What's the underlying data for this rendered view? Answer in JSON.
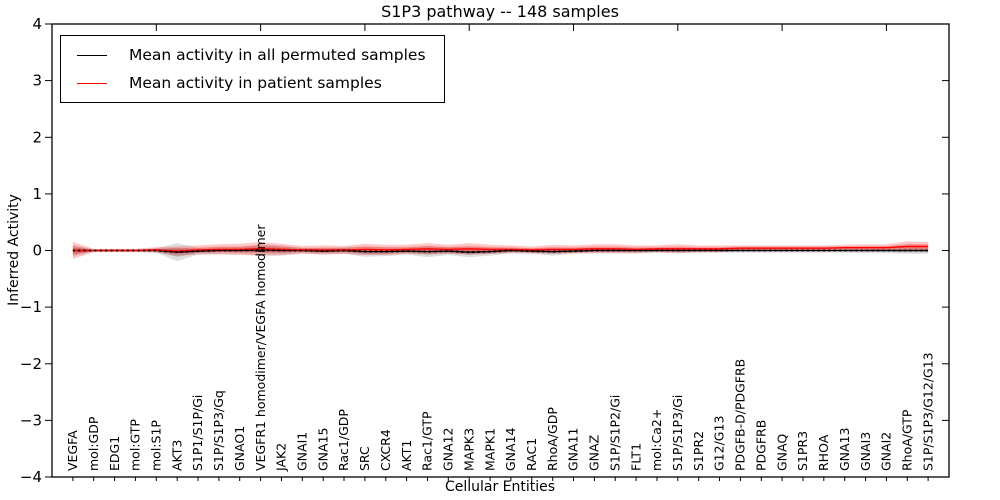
{
  "title": "S1P3 pathway -- 148 samples",
  "legend": {
    "items": [
      {
        "key": "permuted",
        "label": "Mean activity in all permuted samples",
        "color": "#000000"
      },
      {
        "key": "patient",
        "label": "Mean activity in patient samples",
        "color": "#ff0000"
      }
    ]
  },
  "axes": {
    "ylabel": "Inferred Activity",
    "xlabel": "Cellular Entities",
    "y_ticks": [
      "4",
      "3",
      "2",
      "1",
      "0",
      "−1",
      "−2",
      "−3",
      "−4"
    ],
    "ylim": [
      -4,
      4
    ],
    "x_major_tick_every": 5,
    "grid": false
  },
  "chart_data": {
    "type": "line",
    "title": "S1P3 pathway -- 148 samples",
    "xlabel": "Cellular Entities",
    "ylabel": "Inferred Activity",
    "ylim": [
      -4,
      4
    ],
    "legend_position": "upper left",
    "categories": [
      "VEGFA",
      "mol:GDP",
      "EDG1",
      "mol:GTP",
      "mol:S1P",
      "AKT3",
      "S1P1/S1P/Gi",
      "S1P/S1P3/Gq",
      "GNAO1",
      "VEGFR1 homodimer/VEGFA homodimer",
      "JAK2",
      "GNAI1",
      "GNA15",
      "Rac1/GDP",
      "SRC",
      "CXCR4",
      "AKT1",
      "Rac1/GTP",
      "GNA12",
      "MAPK3",
      "MAPK1",
      "GNA14",
      "RAC1",
      "RhoA/GDP",
      "GNA11",
      "GNAZ",
      "S1P/S1P2/Gi",
      "FLT1",
      "mol:Ca2+",
      "S1P/S1P3/Gi",
      "S1PR2",
      "G12/G13",
      "PDGFB-D/PDGFRB",
      "PDGFRB",
      "GNAQ",
      "S1PR3",
      "RHOA",
      "GNA13",
      "GNAI3",
      "GNAI2",
      "RhoA/GTP",
      "S1P/S1P3/G12/G13"
    ],
    "series": [
      {
        "key": "permuted",
        "name": "Mean activity in all permuted samples",
        "color": "#000000",
        "line_style": "solid with dense dot overlay",
        "band_color": "#000000",
        "band_opacity": 0.13,
        "values": [
          0,
          0,
          0,
          0,
          0,
          -0.03,
          -0.01,
          0,
          0,
          0.01,
          0,
          0,
          -0.01,
          0,
          -0.02,
          -0.02,
          -0.01,
          -0.02,
          -0.01,
          -0.03,
          -0.02,
          0,
          -0.01,
          -0.02,
          -0.01,
          0,
          0,
          0,
          0,
          0,
          0,
          0,
          0,
          0,
          0,
          0,
          0,
          0,
          0,
          0,
          0,
          0
        ],
        "band_halfwidth": [
          0.1,
          0.02,
          0.02,
          0.02,
          0.04,
          0.16,
          0.06,
          0.06,
          0.06,
          0.1,
          0.09,
          0.05,
          0.06,
          0.06,
          0.09,
          0.08,
          0.06,
          0.1,
          0.07,
          0.09,
          0.07,
          0.05,
          0.05,
          0.07,
          0.05,
          0.05,
          0.05,
          0.05,
          0.04,
          0.05,
          0.04,
          0.04,
          0.04,
          0.04,
          0.04,
          0.04,
          0.04,
          0.04,
          0.05,
          0.05,
          0.06,
          0.06
        ]
      },
      {
        "key": "patient",
        "name": "Mean activity in patient samples",
        "color": "#ff0000",
        "line_style": "solid",
        "band_color": "#ff0000",
        "band_opacity": 0.22,
        "values": [
          0,
          0,
          0,
          0,
          0.01,
          -0.01,
          0.01,
          0.02,
          0.02,
          0.03,
          0.02,
          0.01,
          0.01,
          0.01,
          0.02,
          0.01,
          0.02,
          0.03,
          0.02,
          0.03,
          0.02,
          0.02,
          0.01,
          0.02,
          0.02,
          0.03,
          0.03,
          0.02,
          0.03,
          0.03,
          0.03,
          0.03,
          0.04,
          0.04,
          0.04,
          0.04,
          0.04,
          0.05,
          0.05,
          0.05,
          0.07,
          0.07
        ],
        "band_halfwidth": [
          0.15,
          0.03,
          0.03,
          0.03,
          0.05,
          0.08,
          0.08,
          0.09,
          0.1,
          0.12,
          0.1,
          0.07,
          0.08,
          0.07,
          0.1,
          0.09,
          0.08,
          0.1,
          0.08,
          0.1,
          0.08,
          0.07,
          0.06,
          0.08,
          0.07,
          0.08,
          0.08,
          0.07,
          0.06,
          0.08,
          0.06,
          0.06,
          0.05,
          0.05,
          0.05,
          0.05,
          0.05,
          0.05,
          0.06,
          0.06,
          0.09,
          0.08
        ]
      }
    ]
  }
}
